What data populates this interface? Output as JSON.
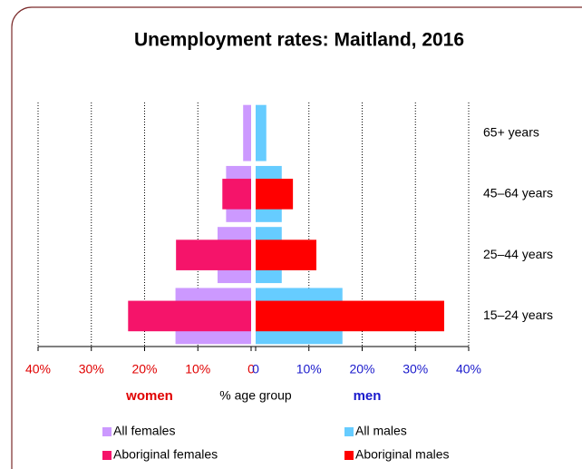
{
  "chart_data": {
    "type": "bar",
    "title": "Unemployment rates: Maitland, 2016",
    "categories": [
      "65+ years",
      "45–64 years",
      "25–44 years",
      "15–24 years"
    ],
    "series": [
      {
        "name": "All females",
        "side": "left",
        "color": "#cc99ff",
        "values": [
          1.5,
          4.7,
          6.3,
          14.2
        ]
      },
      {
        "name": "All males",
        "side": "right",
        "color": "#66ccff",
        "values": [
          2.0,
          4.9,
          4.9,
          16.3
        ]
      },
      {
        "name": "Aboriginal females",
        "side": "left",
        "overlay": true,
        "color": "#f5146a",
        "values": [
          null,
          5.4,
          14.1,
          23.1
        ]
      },
      {
        "name": "Aboriginal males",
        "side": "right",
        "overlay": true,
        "color": "#ff0000",
        "values": [
          null,
          7.0,
          11.4,
          35.4
        ]
      }
    ],
    "xlabel": "% age group",
    "left_label": "women",
    "right_label": "men",
    "left_color": "#e00000",
    "right_color": "#1a1acc",
    "xlim": [
      0,
      40
    ],
    "xticks_left": [
      {
        "value": 40,
        "label": "40%"
      },
      {
        "value": 30,
        "label": "30%"
      },
      {
        "value": 20,
        "label": "20%"
      },
      {
        "value": 10,
        "label": "10%"
      },
      0
    ],
    "xticks_right": [
      0,
      {
        "value": 10,
        "label": "10%"
      },
      {
        "value": 20,
        "label": "20%"
      },
      {
        "value": 30,
        "label": "30%"
      },
      {
        "value": 40,
        "label": "40%"
      }
    ],
    "grid": true
  }
}
